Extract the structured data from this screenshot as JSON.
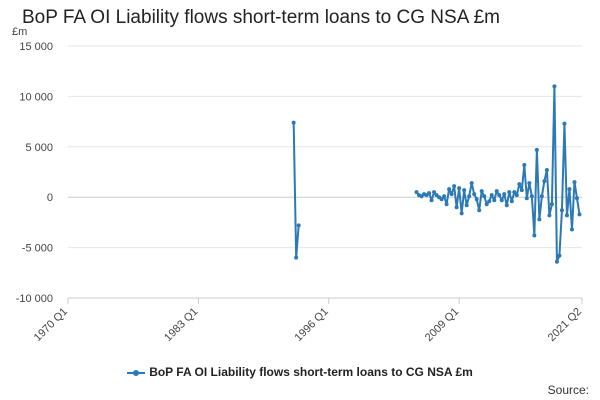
{
  "chart_data": {
    "type": "line",
    "title": "BoP FA OI Liability flows short-term loans to CG NSA £m",
    "ylabel": "£m",
    "xlabel": "",
    "ylim": [
      -10000,
      15000
    ],
    "y_ticks": [
      15000,
      10000,
      5000,
      0,
      -5000,
      -10000
    ],
    "y_tick_labels": [
      "15 000",
      "10 000",
      "5 000",
      "0",
      "-5 000",
      "-10 000"
    ],
    "x_range": [
      1970.0,
      2021.25
    ],
    "x_ticks": [
      1970.0,
      1983.0,
      1996.0,
      2009.0,
      2021.25
    ],
    "x_tick_labels": [
      "1970 Q1",
      "1983 Q1",
      "1996 Q1",
      "2009 Q1",
      "2021 Q2"
    ],
    "grid": "horizontal",
    "legend_position": "bottom",
    "series": [
      {
        "name": "BoP FA OI Liability flows short-term loans to CG NSA £m",
        "color": "#2b7ab5",
        "segments": [
          [
            [
              1992.5,
              7400
            ],
            [
              1992.75,
              -6000
            ],
            [
              1993.0,
              -2800
            ]
          ],
          [
            [
              2004.75,
              500
            ],
            [
              2005.0,
              200
            ],
            [
              2005.25,
              100
            ],
            [
              2005.5,
              300
            ],
            [
              2005.75,
              200
            ],
            [
              2006.0,
              400
            ],
            [
              2006.25,
              -300
            ],
            [
              2006.5,
              500
            ],
            [
              2006.75,
              200
            ],
            [
              2007.0,
              0
            ],
            [
              2007.25,
              -200
            ],
            [
              2007.5,
              100
            ],
            [
              2007.75,
              -700
            ],
            [
              2008.0,
              800
            ],
            [
              2008.25,
              300
            ],
            [
              2008.5,
              1100
            ],
            [
              2008.75,
              -1000
            ],
            [
              2009.0,
              900
            ],
            [
              2009.25,
              -1600
            ],
            [
              2009.5,
              700
            ],
            [
              2009.75,
              -800
            ],
            [
              2010.0,
              100
            ],
            [
              2010.25,
              1400
            ],
            [
              2010.5,
              300
            ],
            [
              2010.75,
              -200
            ],
            [
              2011.0,
              -1300
            ],
            [
              2011.25,
              600
            ],
            [
              2011.5,
              100
            ],
            [
              2011.75,
              -700
            ],
            [
              2012.0,
              -400
            ],
            [
              2012.25,
              200
            ],
            [
              2012.5,
              -300
            ],
            [
              2012.75,
              600
            ],
            [
              2013.0,
              200
            ],
            [
              2013.25,
              -300
            ],
            [
              2013.5,
              300
            ],
            [
              2013.75,
              -800
            ],
            [
              2014.0,
              500
            ],
            [
              2014.25,
              -400
            ],
            [
              2014.5,
              500
            ],
            [
              2014.75,
              200
            ],
            [
              2015.0,
              1300
            ],
            [
              2015.25,
              700
            ],
            [
              2015.5,
              3200
            ],
            [
              2015.75,
              -100
            ],
            [
              2016.0,
              1400
            ],
            [
              2016.25,
              100
            ],
            [
              2016.5,
              -3800
            ],
            [
              2016.75,
              4700
            ],
            [
              2017.0,
              -2200
            ],
            [
              2017.25,
              100
            ],
            [
              2017.5,
              1600
            ],
            [
              2017.75,
              2700
            ],
            [
              2018.0,
              -1800
            ],
            [
              2018.25,
              -700
            ],
            [
              2018.5,
              11000
            ],
            [
              2018.75,
              -6400
            ],
            [
              2019.0,
              -5800
            ],
            [
              2019.25,
              -1300
            ],
            [
              2019.5,
              7300
            ],
            [
              2019.75,
              -1800
            ],
            [
              2020.0,
              800
            ],
            [
              2020.25,
              -3200
            ],
            [
              2020.5,
              1500
            ],
            [
              2020.75,
              -100
            ],
            [
              2021.0,
              -1700
            ]
          ]
        ]
      }
    ]
  },
  "legend": {
    "label": "BoP FA OI Liability flows short-term loans to CG NSA £m"
  },
  "footer": {
    "source_label": "Source:"
  }
}
